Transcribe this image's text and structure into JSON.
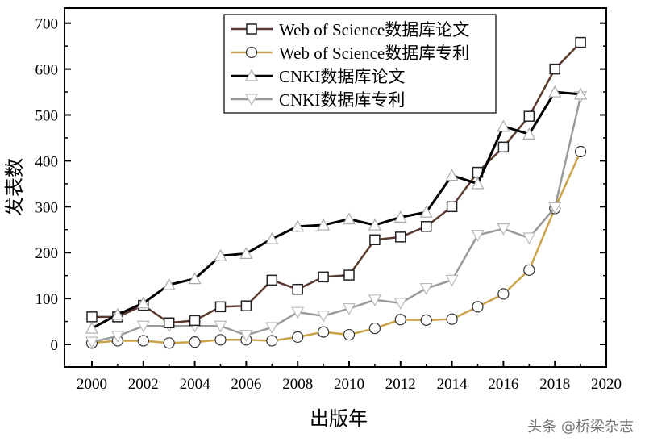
{
  "chart_data": {
    "type": "line",
    "title": "",
    "xlabel": "出版年",
    "ylabel": "发表数",
    "xlim": [
      1999,
      2020
    ],
    "ylim": [
      -50,
      730
    ],
    "xticks": [
      2000,
      2002,
      2004,
      2006,
      2008,
      2010,
      2012,
      2014,
      2016,
      2018,
      2020
    ],
    "yticks": [
      0,
      100,
      200,
      300,
      400,
      500,
      600,
      700
    ],
    "grid": false,
    "legend_position": "top-center",
    "x": [
      2000,
      2001,
      2002,
      2003,
      2004,
      2005,
      2006,
      2007,
      2008,
      2009,
      2010,
      2011,
      2012,
      2013,
      2014,
      2015,
      2016,
      2017,
      2018,
      2019
    ],
    "series": [
      {
        "name": "Web of Science数据库论文",
        "marker": "square",
        "color": "#5a3a2e",
        "values": [
          60,
          60,
          85,
          47,
          52,
          82,
          84,
          140,
          120,
          147,
          151,
          228,
          234,
          257,
          300,
          375,
          430,
          497,
          600,
          658
        ]
      },
      {
        "name": "Web of Science数据库专利",
        "marker": "circle",
        "color": "#c9a24a",
        "values": [
          3,
          8,
          8,
          3,
          5,
          10,
          10,
          8,
          16,
          27,
          21,
          35,
          54,
          53,
          55,
          82,
          110,
          162,
          296,
          420
        ]
      },
      {
        "name": "CNKI数据库论文",
        "marker": "triangle-up",
        "color": "#000000",
        "values": [
          35,
          65,
          90,
          130,
          143,
          193,
          198,
          230,
          257,
          260,
          273,
          260,
          277,
          288,
          368,
          350,
          475,
          458,
          550,
          545
        ]
      },
      {
        "name": "CNKI数据库专利",
        "marker": "triangle-down",
        "color": "#9a9a9a",
        "values": [
          5,
          18,
          40,
          40,
          40,
          40,
          20,
          37,
          70,
          62,
          78,
          97,
          90,
          122,
          140,
          238,
          252,
          232,
          298,
          540
        ]
      }
    ]
  },
  "watermark": "头条 @桥梁杂志"
}
